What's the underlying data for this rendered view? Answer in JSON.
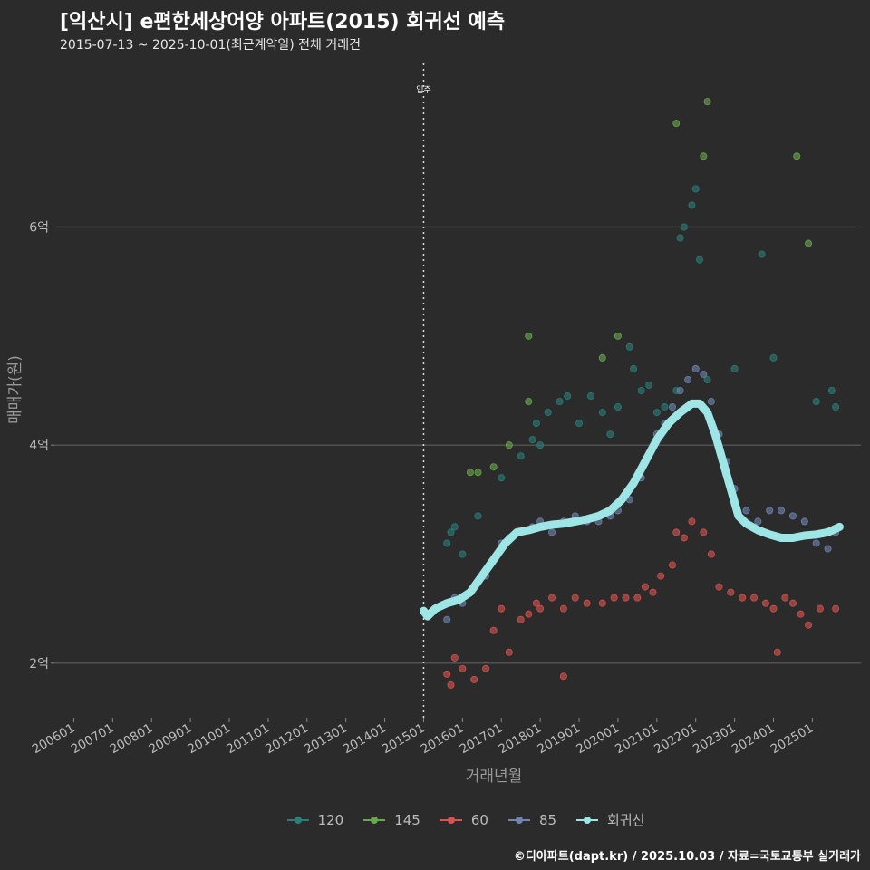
{
  "header": {
    "title": "[익산시] e편한세상어양 아파트(2015) 회귀선 예측",
    "subtitle": "2015-07-13 ~ 2025-10-01(최근계약일) 전체 거래건"
  },
  "legend": [
    {
      "label": "120",
      "color": "#2a7f7a"
    },
    {
      "label": "145",
      "color": "#6aa84f"
    },
    {
      "label": "60",
      "color": "#d9534f"
    },
    {
      "label": "85",
      "color": "#7085b0"
    },
    {
      "label": "회귀선",
      "color": "#9ee6e6"
    }
  ],
  "source": "©디아파트(dapt.kr) / 2025.10.03 / 자료=국토교통부 실거래가",
  "chart_data": {
    "type": "scatter",
    "title": "[익산시] e편한세상어양 아파트(2015) 회귀선 예측",
    "xlabel": "거래년월",
    "ylabel": "매매가(원)",
    "xlim": [
      2005.5,
      2026.25
    ],
    "ylim": [
      1.5,
      7.5
    ],
    "yticks": [
      2,
      4,
      6
    ],
    "ytick_labels": [
      "2억",
      "4억",
      "6억"
    ],
    "xticks": [
      2006,
      2007,
      2008,
      2009,
      2010,
      2011,
      2012,
      2013,
      2014,
      2015,
      2016,
      2017,
      2018,
      2019,
      2020,
      2021,
      2022,
      2023,
      2024,
      2025
    ],
    "xtick_labels": [
      "200601",
      "200701",
      "200801",
      "200901",
      "201001",
      "201101",
      "201201",
      "201301",
      "201401",
      "201501",
      "201601",
      "201701",
      "201801",
      "201901",
      "202001",
      "202101",
      "202201",
      "202301",
      "202401",
      "202501"
    ],
    "annotation": {
      "x": 2015.0,
      "label": "입주"
    },
    "series": [
      {
        "name": "120",
        "color": "#2a7f7a",
        "points": [
          [
            2015.6,
            3.1
          ],
          [
            2015.7,
            3.2
          ],
          [
            2015.8,
            3.25
          ],
          [
            2016.0,
            3.0
          ],
          [
            2016.4,
            3.35
          ],
          [
            2017.0,
            3.7
          ],
          [
            2017.5,
            3.9
          ],
          [
            2017.8,
            4.05
          ],
          [
            2017.9,
            4.2
          ],
          [
            2018.0,
            4.0
          ],
          [
            2018.2,
            4.3
          ],
          [
            2018.5,
            4.4
          ],
          [
            2018.7,
            4.45
          ],
          [
            2019.0,
            4.2
          ],
          [
            2019.3,
            4.45
          ],
          [
            2019.6,
            4.3
          ],
          [
            2019.8,
            4.1
          ],
          [
            2020.0,
            4.35
          ],
          [
            2020.3,
            4.9
          ],
          [
            2020.4,
            4.7
          ],
          [
            2020.6,
            4.5
          ],
          [
            2020.8,
            4.55
          ],
          [
            2021.0,
            4.3
          ],
          [
            2021.2,
            4.35
          ],
          [
            2021.5,
            4.5
          ],
          [
            2021.6,
            5.9
          ],
          [
            2021.7,
            6.0
          ],
          [
            2021.9,
            6.2
          ],
          [
            2022.0,
            6.35
          ],
          [
            2022.1,
            5.7
          ],
          [
            2022.3,
            4.6
          ],
          [
            2023.0,
            4.7
          ],
          [
            2023.7,
            5.75
          ],
          [
            2024.0,
            4.8
          ],
          [
            2025.1,
            4.4
          ],
          [
            2025.5,
            4.5
          ],
          [
            2025.6,
            4.35
          ]
        ]
      },
      {
        "name": "145",
        "color": "#6aa84f",
        "points": [
          [
            2016.2,
            3.75
          ],
          [
            2016.4,
            3.75
          ],
          [
            2016.8,
            3.8
          ],
          [
            2017.2,
            4.0
          ],
          [
            2017.7,
            5.0
          ],
          [
            2017.7,
            4.4
          ],
          [
            2019.6,
            4.8
          ],
          [
            2020.0,
            5.0
          ],
          [
            2021.5,
            6.95
          ],
          [
            2022.2,
            6.65
          ],
          [
            2022.3,
            7.15
          ],
          [
            2024.6,
            6.65
          ],
          [
            2024.9,
            5.85
          ]
        ]
      },
      {
        "name": "60",
        "color": "#d9534f",
        "points": [
          [
            2015.6,
            1.9
          ],
          [
            2015.7,
            1.8
          ],
          [
            2015.8,
            2.05
          ],
          [
            2016.0,
            1.95
          ],
          [
            2016.3,
            1.85
          ],
          [
            2016.6,
            1.95
          ],
          [
            2016.8,
            2.3
          ],
          [
            2017.0,
            2.5
          ],
          [
            2017.2,
            2.1
          ],
          [
            2017.5,
            2.4
          ],
          [
            2017.7,
            2.45
          ],
          [
            2017.9,
            2.55
          ],
          [
            2018.0,
            2.5
          ],
          [
            2018.3,
            2.6
          ],
          [
            2018.6,
            2.5
          ],
          [
            2018.9,
            2.6
          ],
          [
            2019.2,
            2.55
          ],
          [
            2019.6,
            2.55
          ],
          [
            2019.9,
            2.6
          ],
          [
            2020.2,
            2.6
          ],
          [
            2020.5,
            2.6
          ],
          [
            2020.7,
            2.7
          ],
          [
            2020.9,
            2.65
          ],
          [
            2021.1,
            2.8
          ],
          [
            2021.4,
            2.9
          ],
          [
            2021.5,
            3.2
          ],
          [
            2021.7,
            3.15
          ],
          [
            2021.9,
            3.3
          ],
          [
            2022.2,
            3.2
          ],
          [
            2022.4,
            3.0
          ],
          [
            2022.6,
            2.7
          ],
          [
            2022.9,
            2.65
          ],
          [
            2023.2,
            2.6
          ],
          [
            2023.5,
            2.6
          ],
          [
            2023.8,
            2.55
          ],
          [
            2024.0,
            2.5
          ],
          [
            2024.3,
            2.6
          ],
          [
            2024.5,
            2.55
          ],
          [
            2024.7,
            2.45
          ],
          [
            2024.9,
            2.35
          ],
          [
            2025.2,
            2.5
          ],
          [
            2025.6,
            2.5
          ],
          [
            2024.1,
            2.1
          ],
          [
            2018.6,
            1.88
          ]
        ]
      },
      {
        "name": "85",
        "color": "#7085b0",
        "points": [
          [
            2015.6,
            2.4
          ],
          [
            2015.8,
            2.6
          ],
          [
            2016.0,
            2.55
          ],
          [
            2016.3,
            2.7
          ],
          [
            2016.6,
            2.8
          ],
          [
            2016.8,
            2.95
          ],
          [
            2017.0,
            3.1
          ],
          [
            2017.2,
            3.15
          ],
          [
            2017.5,
            3.2
          ],
          [
            2017.8,
            3.25
          ],
          [
            2018.0,
            3.3
          ],
          [
            2018.3,
            3.2
          ],
          [
            2018.6,
            3.3
          ],
          [
            2018.9,
            3.35
          ],
          [
            2019.2,
            3.3
          ],
          [
            2019.5,
            3.3
          ],
          [
            2019.8,
            3.35
          ],
          [
            2020.0,
            3.4
          ],
          [
            2020.3,
            3.5
          ],
          [
            2020.6,
            3.7
          ],
          [
            2020.8,
            3.9
          ],
          [
            2021.0,
            4.1
          ],
          [
            2021.2,
            4.2
          ],
          [
            2021.4,
            4.35
          ],
          [
            2021.6,
            4.5
          ],
          [
            2021.8,
            4.6
          ],
          [
            2022.0,
            4.7
          ],
          [
            2022.2,
            4.65
          ],
          [
            2022.4,
            4.4
          ],
          [
            2022.6,
            4.1
          ],
          [
            2022.8,
            3.85
          ],
          [
            2023.0,
            3.6
          ],
          [
            2023.3,
            3.4
          ],
          [
            2023.6,
            3.3
          ],
          [
            2023.9,
            3.4
          ],
          [
            2024.2,
            3.4
          ],
          [
            2024.5,
            3.35
          ],
          [
            2024.8,
            3.3
          ],
          [
            2025.1,
            3.1
          ],
          [
            2025.4,
            3.05
          ],
          [
            2025.6,
            3.2
          ]
        ]
      },
      {
        "name": "회귀선",
        "color": "#9ee6e6",
        "line": true,
        "points": [
          [
            2015.0,
            2.48
          ],
          [
            2015.1,
            2.43
          ],
          [
            2015.3,
            2.5
          ],
          [
            2015.6,
            2.55
          ],
          [
            2015.9,
            2.58
          ],
          [
            2016.2,
            2.65
          ],
          [
            2016.5,
            2.8
          ],
          [
            2016.8,
            2.95
          ],
          [
            2017.1,
            3.1
          ],
          [
            2017.4,
            3.2
          ],
          [
            2017.7,
            3.22
          ],
          [
            2018.0,
            3.25
          ],
          [
            2018.3,
            3.27
          ],
          [
            2018.6,
            3.28
          ],
          [
            2018.9,
            3.3
          ],
          [
            2019.2,
            3.32
          ],
          [
            2019.5,
            3.35
          ],
          [
            2019.8,
            3.4
          ],
          [
            2020.1,
            3.5
          ],
          [
            2020.4,
            3.65
          ],
          [
            2020.7,
            3.85
          ],
          [
            2021.0,
            4.05
          ],
          [
            2021.3,
            4.2
          ],
          [
            2021.6,
            4.3
          ],
          [
            2021.9,
            4.38
          ],
          [
            2022.1,
            4.38
          ],
          [
            2022.3,
            4.3
          ],
          [
            2022.5,
            4.1
          ],
          [
            2022.7,
            3.85
          ],
          [
            2022.9,
            3.6
          ],
          [
            2023.1,
            3.35
          ],
          [
            2023.3,
            3.28
          ],
          [
            2023.6,
            3.22
          ],
          [
            2023.9,
            3.18
          ],
          [
            2024.2,
            3.15
          ],
          [
            2024.5,
            3.15
          ],
          [
            2024.8,
            3.17
          ],
          [
            2025.1,
            3.18
          ],
          [
            2025.4,
            3.2
          ],
          [
            2025.7,
            3.25
          ]
        ]
      }
    ]
  }
}
